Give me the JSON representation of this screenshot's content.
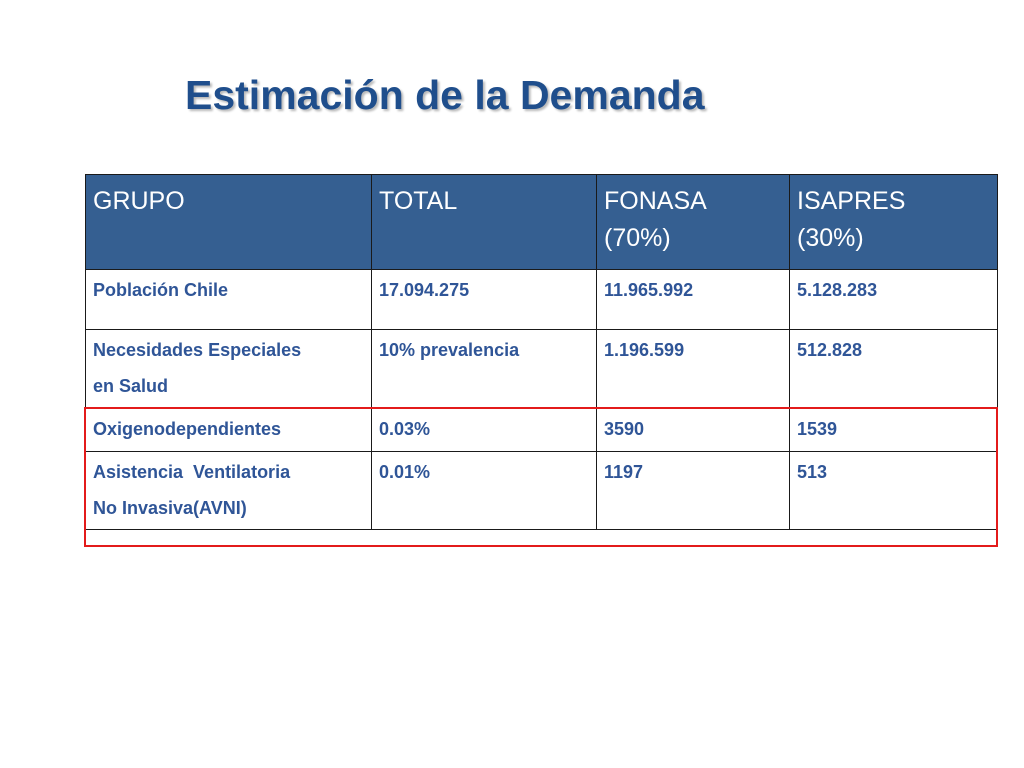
{
  "title": "Estimación de la Demanda",
  "table": {
    "headers": [
      {
        "line1": "GRUPO",
        "line2": ""
      },
      {
        "line1": "TOTAL",
        "line2": ""
      },
      {
        "line1": "FONASA",
        "line2": "(70%)"
      },
      {
        "line1": "ISAPRES",
        "line2": "(30%)"
      }
    ],
    "rows": [
      [
        {
          "line1": "Población Chile",
          "line2": ""
        },
        {
          "line1": "17.094.275",
          "line2": ""
        },
        {
          "line1": "11.965.992",
          "line2": ""
        },
        {
          "line1": "5.128.283",
          "line2": ""
        }
      ],
      [
        {
          "line1": "Necesidades Especiales",
          "line2": "en Salud"
        },
        {
          "line1": "10% prevalencia",
          "line2": ""
        },
        {
          "line1": "1.196.599",
          "line2": ""
        },
        {
          "line1": "512.828",
          "line2": ""
        }
      ],
      [
        {
          "line1": "Oxigenodependientes",
          "line2": ""
        },
        {
          "line1": "0.03%",
          "line2": ""
        },
        {
          "line1": "3590",
          "line2": ""
        },
        {
          "line1": "1539",
          "line2": ""
        }
      ],
      [
        {
          "line1": "Asistencia  Ventilatoria",
          "line2": "No Invasiva(AVNI)"
        },
        {
          "line1": "0.01%",
          "line2": ""
        },
        {
          "line1": "1197",
          "line2": ""
        },
        {
          "line1": "513",
          "line2": ""
        }
      ]
    ]
  },
  "colors": {
    "title": "#1f4e8c",
    "header_bg": "#355f91",
    "header_text": "#ffffff",
    "cell_text": "#2f5597",
    "highlight_border": "#e31b1b"
  }
}
